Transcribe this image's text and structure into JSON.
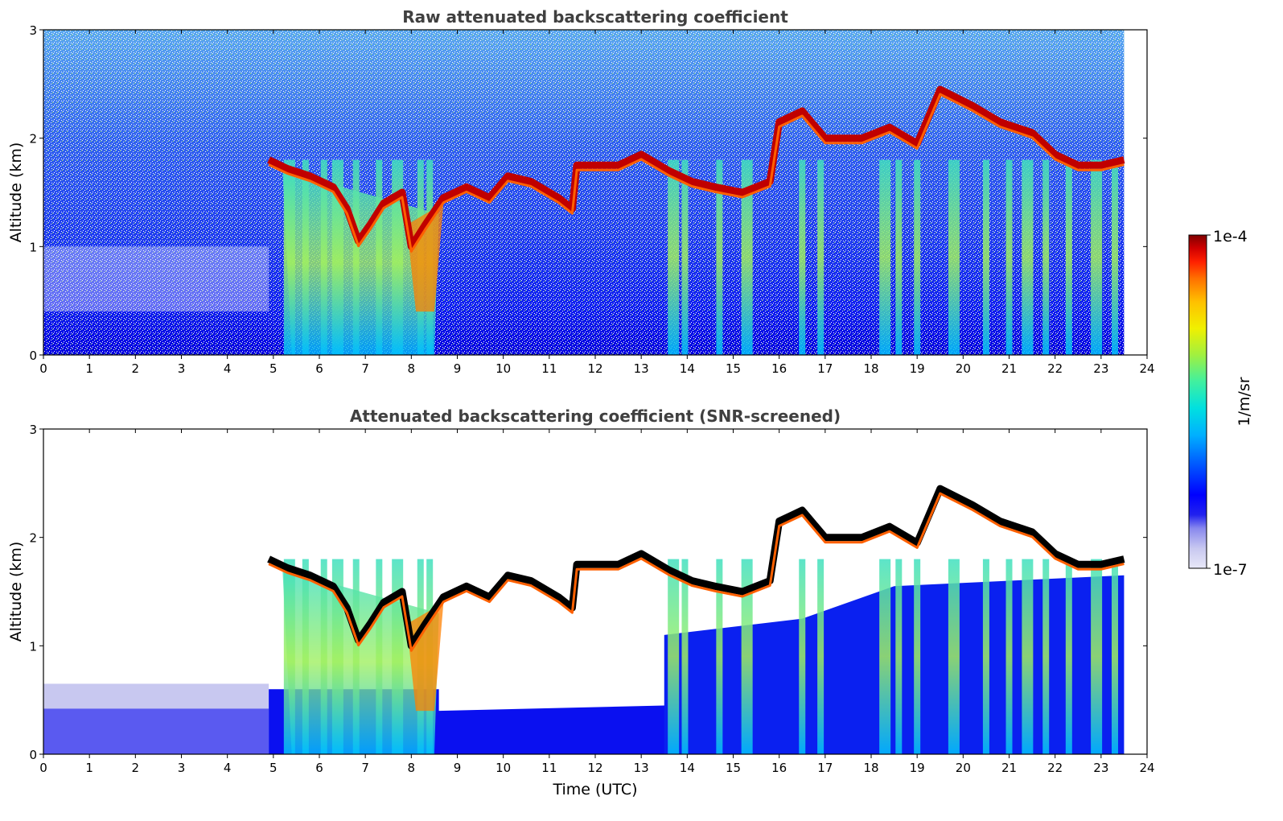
{
  "chart_data": [
    {
      "type": "heatmap",
      "title": "Raw attenuated backscattering coefficient",
      "xlabel": "",
      "ylabel": "Altitude (km)",
      "xlim": [
        0,
        24
      ],
      "ylim": [
        0,
        3
      ],
      "xticks": [
        "0",
        "1",
        "2",
        "3",
        "4",
        "5",
        "6",
        "7",
        "8",
        "9",
        "10",
        "11",
        "12",
        "13",
        "14",
        "15",
        "16",
        "17",
        "18",
        "19",
        "20",
        "21",
        "22",
        "23",
        "24"
      ],
      "yticks": [
        "0",
        "1",
        "2",
        "3"
      ],
      "data_end_hour": 23.5,
      "screened": false,
      "cloud_base_km": [
        {
          "t": 4.9,
          "z": 1.8
        },
        {
          "t": 5.3,
          "z": 1.72
        },
        {
          "t": 5.8,
          "z": 1.65
        },
        {
          "t": 6.3,
          "z": 1.55
        },
        {
          "t": 6.6,
          "z": 1.35
        },
        {
          "t": 6.85,
          "z": 1.05
        },
        {
          "t": 7.1,
          "z": 1.2
        },
        {
          "t": 7.4,
          "z": 1.4
        },
        {
          "t": 7.8,
          "z": 1.5
        },
        {
          "t": 8.0,
          "z": 1.0
        },
        {
          "t": 8.3,
          "z": 1.2
        },
        {
          "t": 8.7,
          "z": 1.45
        },
        {
          "t": 9.2,
          "z": 1.55
        },
        {
          "t": 9.7,
          "z": 1.45
        },
        {
          "t": 10.1,
          "z": 1.65
        },
        {
          "t": 10.6,
          "z": 1.6
        },
        {
          "t": 11.2,
          "z": 1.45
        },
        {
          "t": 11.5,
          "z": 1.35
        },
        {
          "t": 11.6,
          "z": 1.75
        },
        {
          "t": 12.5,
          "z": 1.75
        },
        {
          "t": 13.0,
          "z": 1.85
        },
        {
          "t": 13.6,
          "z": 1.7
        },
        {
          "t": 14.1,
          "z": 1.6
        },
        {
          "t": 14.6,
          "z": 1.55
        },
        {
          "t": 15.2,
          "z": 1.5
        },
        {
          "t": 15.8,
          "z": 1.6
        },
        {
          "t": 16.0,
          "z": 2.15
        },
        {
          "t": 16.5,
          "z": 2.25
        },
        {
          "t": 17.0,
          "z": 2.0
        },
        {
          "t": 17.8,
          "z": 2.0
        },
        {
          "t": 18.4,
          "z": 2.1
        },
        {
          "t": 19.0,
          "z": 1.95
        },
        {
          "t": 19.5,
          "z": 2.45
        },
        {
          "t": 20.2,
          "z": 2.3
        },
        {
          "t": 20.8,
          "z": 2.15
        },
        {
          "t": 21.5,
          "z": 2.05
        },
        {
          "t": 22.0,
          "z": 1.85
        },
        {
          "t": 22.5,
          "z": 1.75
        },
        {
          "t": 23.0,
          "z": 1.75
        },
        {
          "t": 23.5,
          "z": 1.8
        }
      ],
      "precip_columns_hour": [
        5.35,
        5.7,
        6.1,
        6.4,
        6.8,
        7.3,
        7.7,
        8.2,
        8.4,
        13.7,
        13.95,
        14.7,
        15.3,
        16.5,
        16.9,
        18.3,
        18.6,
        19.0,
        19.8,
        20.5,
        21.0,
        21.4,
        21.8,
        22.3,
        22.9,
        23.3
      ]
    },
    {
      "type": "heatmap",
      "title": "Attenuated backscattering coefficient (SNR-screened)",
      "xlabel": "Time (UTC)",
      "ylabel": "Altitude (km)",
      "xlim": [
        0,
        24
      ],
      "ylim": [
        0,
        3
      ],
      "xticks": [
        "0",
        "1",
        "2",
        "3",
        "4",
        "5",
        "6",
        "7",
        "8",
        "9",
        "10",
        "11",
        "12",
        "13",
        "14",
        "15",
        "16",
        "17",
        "18",
        "19",
        "20",
        "21",
        "22",
        "23",
        "24"
      ],
      "yticks": [
        "0",
        "1",
        "2",
        "3"
      ],
      "data_end_hour": 23.5,
      "screened": true
    }
  ],
  "colorbar": {
    "label": "1/m/sr",
    "max_label": "1e-4",
    "min_label": "1e-7",
    "colormap": [
      "#e8e8f8",
      "#c8c8f0",
      "#8888ee",
      "#2222ee",
      "#0000ff",
      "#0060ff",
      "#00b0ff",
      "#00e0e0",
      "#40f0a0",
      "#a0f040",
      "#f0f000",
      "#ffc000",
      "#ff7000",
      "#ff2000",
      "#d00000",
      "#800000"
    ]
  }
}
